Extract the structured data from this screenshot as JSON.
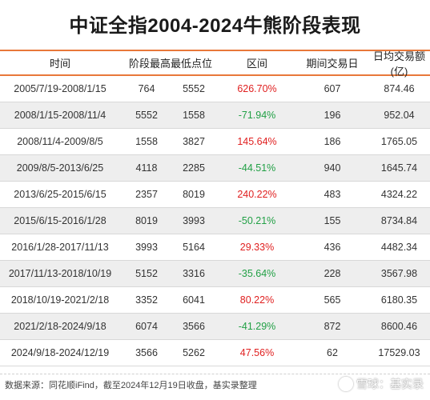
{
  "title": "中证全指2004-2024牛熊阶段表现",
  "columns": [
    "时间",
    "阶段最高最低点位",
    "区间",
    "期间交易日",
    "日均交易额(亿)"
  ],
  "rows": [
    {
      "period": "2005/7/19-2008/1/15",
      "p1": "764",
      "p2": "5552",
      "change": "626.70%",
      "dir": "up",
      "days": "607",
      "avg": "874.46"
    },
    {
      "period": "2008/1/15-2008/11/4",
      "p1": "5552",
      "p2": "1558",
      "change": "-71.94%",
      "dir": "down",
      "days": "196",
      "avg": "952.04"
    },
    {
      "period": "2008/11/4-2009/8/5",
      "p1": "1558",
      "p2": "3827",
      "change": "145.64%",
      "dir": "up",
      "days": "186",
      "avg": "1765.05"
    },
    {
      "period": "2009/8/5-2013/6/25",
      "p1": "4118",
      "p2": "2285",
      "change": "-44.51%",
      "dir": "down",
      "days": "940",
      "avg": "1645.74"
    },
    {
      "period": "2013/6/25-2015/6/15",
      "p1": "2357",
      "p2": "8019",
      "change": "240.22%",
      "dir": "up",
      "days": "483",
      "avg": "4324.22"
    },
    {
      "period": "2015/6/15-2016/1/28",
      "p1": "8019",
      "p2": "3993",
      "change": "-50.21%",
      "dir": "down",
      "days": "155",
      "avg": "8734.84"
    },
    {
      "period": "2016/1/28-2017/11/13",
      "p1": "3993",
      "p2": "5164",
      "change": "29.33%",
      "dir": "up",
      "days": "436",
      "avg": "4482.34"
    },
    {
      "period": "2017/11/13-2018/10/19",
      "p1": "5152",
      "p2": "3316",
      "change": "-35.64%",
      "dir": "down",
      "days": "228",
      "avg": "3567.98"
    },
    {
      "period": "2018/10/19-2021/2/18",
      "p1": "3352",
      "p2": "6041",
      "change": "80.22%",
      "dir": "up",
      "days": "565",
      "avg": "6180.35"
    },
    {
      "period": "2021/2/18-2024/9/18",
      "p1": "6074",
      "p2": "3566",
      "change": "-41.29%",
      "dir": "down",
      "days": "872",
      "avg": "8600.46"
    },
    {
      "period": "2024/9/18-2024/12/19",
      "p1": "3566",
      "p2": "5262",
      "change": "47.56%",
      "dir": "up",
      "days": "62",
      "avg": "17529.03"
    }
  ],
  "footer": "数据来源：同花顺iFind，截至2024年12月19日收盘，基实录整理",
  "watermark": "雪球：基实录",
  "colors": {
    "up": "#e02020",
    "down": "#21a045",
    "accent": "#e8783a"
  },
  "icons": {
    "watermark_logo": "snowball-logo-icon"
  }
}
